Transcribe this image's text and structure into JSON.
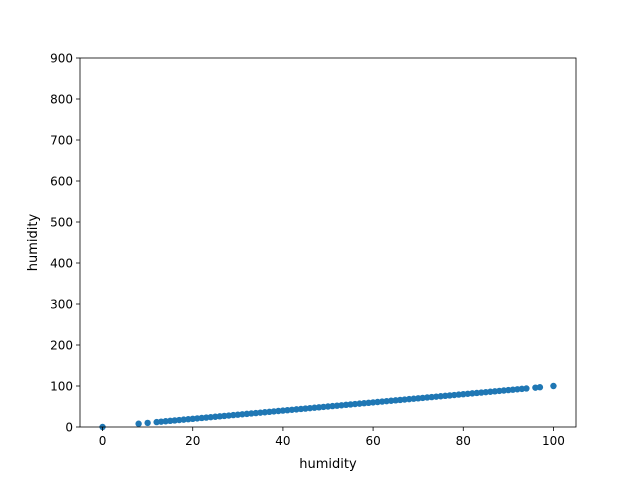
{
  "chart_data": {
    "type": "scatter",
    "title": "",
    "xlabel": "humidity",
    "ylabel": "humidity",
    "xlim": [
      -5,
      105
    ],
    "ylim": [
      0,
      900
    ],
    "xticks": [
      0,
      20,
      40,
      60,
      80,
      100
    ],
    "yticks": [
      0,
      100,
      200,
      300,
      400,
      500,
      600,
      700,
      800,
      900
    ],
    "grid": false,
    "legend": "none",
    "marker_color": "#1f77b4",
    "x": [
      0,
      8,
      10,
      12,
      13,
      14,
      15,
      16,
      17,
      18,
      19,
      20,
      21,
      22,
      23,
      24,
      25,
      26,
      27,
      28,
      29,
      30,
      31,
      32,
      33,
      34,
      35,
      36,
      37,
      38,
      39,
      40,
      41,
      42,
      43,
      44,
      45,
      46,
      47,
      48,
      49,
      50,
      51,
      52,
      53,
      54,
      55,
      56,
      57,
      58,
      59,
      60,
      61,
      62,
      63,
      64,
      65,
      66,
      67,
      68,
      69,
      70,
      71,
      72,
      73,
      74,
      75,
      76,
      77,
      78,
      79,
      80,
      81,
      82,
      83,
      84,
      85,
      86,
      87,
      88,
      89,
      90,
      91,
      92,
      93,
      94,
      96,
      97,
      100
    ],
    "y": [
      0,
      8,
      10,
      12,
      13,
      14,
      15,
      16,
      17,
      18,
      19,
      20,
      21,
      22,
      23,
      24,
      25,
      26,
      27,
      28,
      29,
      30,
      31,
      32,
      33,
      34,
      35,
      36,
      37,
      38,
      39,
      40,
      41,
      42,
      43,
      44,
      45,
      46,
      47,
      48,
      49,
      50,
      51,
      52,
      53,
      54,
      55,
      56,
      57,
      58,
      59,
      60,
      61,
      62,
      63,
      64,
      65,
      66,
      67,
      68,
      69,
      70,
      71,
      72,
      73,
      74,
      75,
      76,
      77,
      78,
      79,
      80,
      81,
      82,
      83,
      84,
      85,
      86,
      87,
      88,
      89,
      90,
      91,
      92,
      93,
      94,
      96,
      97,
      100
    ]
  }
}
